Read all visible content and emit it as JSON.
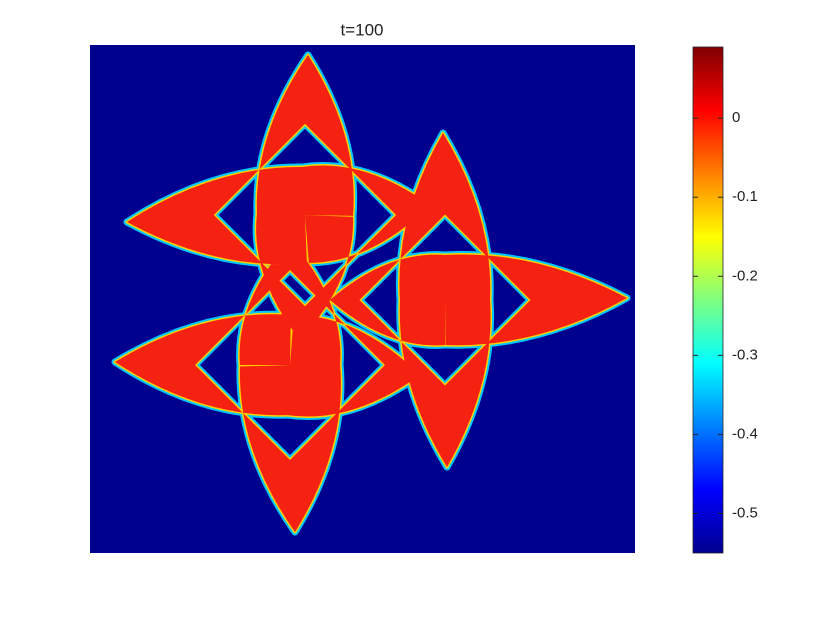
{
  "chart_data": {
    "type": "image",
    "title": "t=100",
    "colorbar": {
      "colormap": "jet",
      "ylim": [
        -0.55,
        0.09
      ],
      "yticks": [
        0,
        -0.1,
        -0.2,
        -0.3,
        -0.4,
        -0.5
      ]
    }
  }
}
